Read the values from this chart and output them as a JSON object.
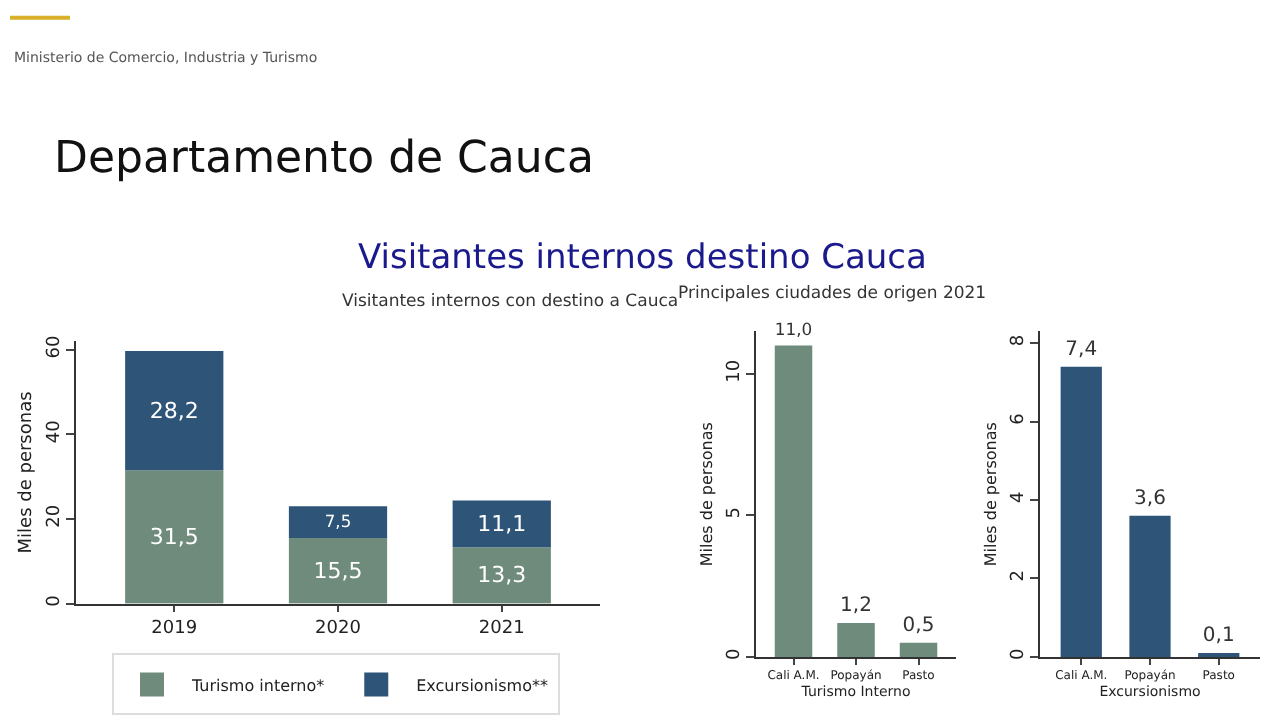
{
  "chart_data": [
    {
      "type": "bar",
      "title": "Visitantes internos con destino a Cauca",
      "ylabel": "Miles de personas",
      "annotations": [
        "Ministerio de Comercio, Industria y Turismo",
        "Departamento de Cauca",
        "Visitantes internos destino Cauca"
      ],
      "categories": [
        "2019",
        "2020",
        "2021"
      ],
      "stacked": true,
      "series": [
        {
          "name": "Turismo interno*",
          "color": "#6e8b7c",
          "values": [
            31.5,
            15.5,
            13.3
          ],
          "value_labels": [
            "31,5",
            "15,5",
            "13,3"
          ]
        },
        {
          "name": "Excursionismo**",
          "color": "#2e5478",
          "values": [
            28.2,
            7.5,
            11.1
          ],
          "value_labels": [
            "28,2",
            "7,5",
            "11,1"
          ]
        }
      ],
      "ylim": [
        0,
        62
      ],
      "yticks": [
        0,
        20,
        40,
        60
      ],
      "legend": "bottom"
    },
    {
      "type": "bar",
      "title": "Principales ciudades de origen 2021",
      "ylabel": "Miles de personas",
      "xlabel": "Turismo Interno",
      "categories": [
        "Cali A.M.",
        "Popayán",
        "Pasto"
      ],
      "series": [
        {
          "color": "#6e8b7c",
          "values": [
            11.0,
            1.2,
            0.5
          ],
          "value_labels": [
            "11,0",
            "1,2",
            "0,5"
          ]
        }
      ],
      "ylim": [
        0,
        11.5
      ],
      "yticks": [
        0,
        5,
        10
      ]
    },
    {
      "type": "bar",
      "ylabel": "Miles de personas",
      "xlabel": "Excursionismo",
      "categories": [
        "Cali A.M.",
        "Popayán",
        "Pasto"
      ],
      "series": [
        {
          "color": "#2e5478",
          "values": [
            7.4,
            3.6,
            0.1
          ],
          "value_labels": [
            "7,4",
            "3,6",
            "0,1"
          ]
        }
      ],
      "ylim": [
        0,
        8.3
      ],
      "yticks": [
        0,
        2,
        4,
        6,
        8
      ]
    }
  ]
}
